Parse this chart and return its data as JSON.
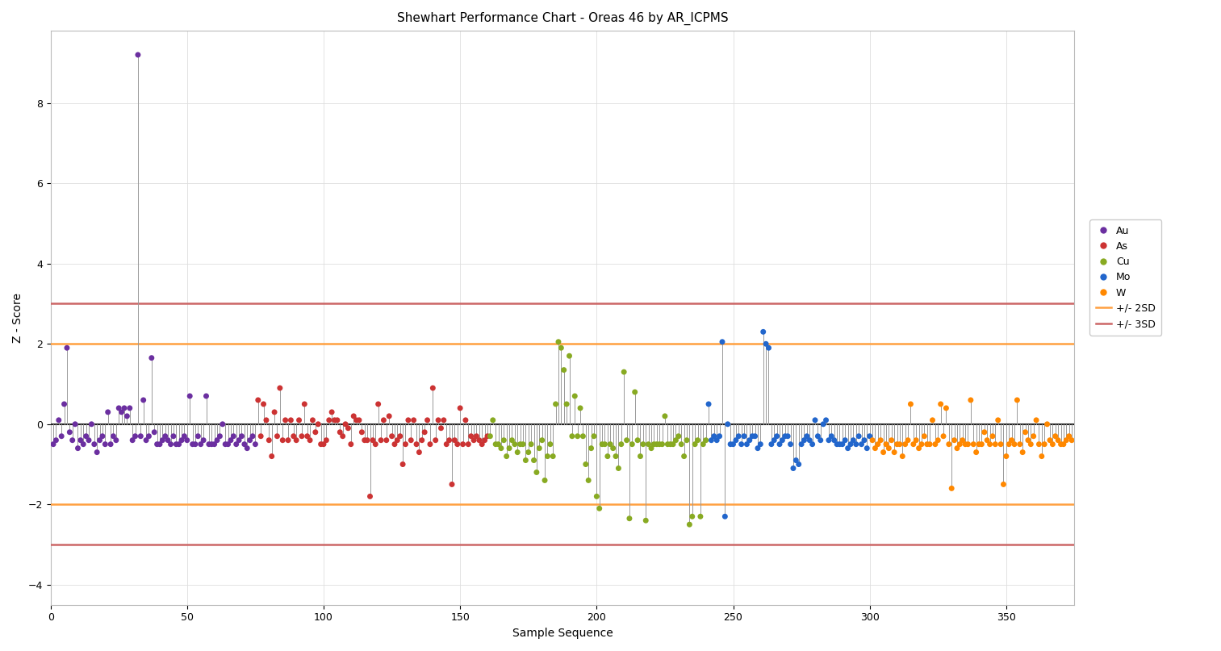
{
  "title": "Shewhart Performance Chart - Oreas 46 by AR_ICPMS",
  "xlabel": "Sample Sequence",
  "ylabel": "Z - Score",
  "ylim": [
    -4.5,
    9.8
  ],
  "xlim": [
    0,
    375
  ],
  "yticks": [
    -4,
    -2,
    0,
    2,
    4,
    6,
    8
  ],
  "xticks": [
    0,
    50,
    100,
    150,
    200,
    250,
    300,
    350
  ],
  "hline_2sd": 2.0,
  "hline_neg2sd": -2.0,
  "hline_3sd": 3.0,
  "hline_neg3sd": -3.0,
  "color_2sd": "#FFA040",
  "color_3sd": "#CC6666",
  "color_Au": "#6B2FA0",
  "color_As": "#CC3333",
  "color_Cu": "#88AA22",
  "color_Mo": "#2266CC",
  "color_W": "#FF8800",
  "color_zero": "#222222",
  "color_connector": "#999999",
  "background": "#FFFFFF",
  "Au_x": [
    1,
    2,
    3,
    4,
    5,
    6,
    7,
    8,
    9,
    10,
    11,
    12,
    13,
    14,
    15,
    16,
    17,
    18,
    19,
    20,
    21,
    22,
    23,
    24,
    25,
    26,
    27,
    28,
    29,
    30,
    31,
    32,
    33,
    34,
    35,
    36,
    37,
    38,
    39,
    40,
    41,
    42,
    43,
    44,
    45,
    46,
    47,
    48,
    49,
    50,
    51,
    52,
    53,
    54,
    55,
    56,
    57,
    58,
    59,
    60,
    61,
    62,
    63,
    64,
    65,
    66,
    67,
    68,
    69,
    70,
    71,
    72,
    73,
    74,
    75
  ],
  "Au_y": [
    -0.5,
    -0.4,
    0.1,
    -0.3,
    0.5,
    1.9,
    -0.2,
    -0.4,
    0.0,
    -0.6,
    -0.4,
    -0.5,
    -0.3,
    -0.4,
    0.0,
    -0.5,
    -0.7,
    -0.4,
    -0.3,
    -0.5,
    0.3,
    -0.5,
    -0.3,
    -0.4,
    0.4,
    0.3,
    0.4,
    0.2,
    0.4,
    -0.4,
    -0.3,
    9.2,
    -0.3,
    0.6,
    -0.4,
    -0.3,
    1.65,
    -0.2,
    -0.5,
    -0.5,
    -0.4,
    -0.3,
    -0.4,
    -0.5,
    -0.3,
    -0.5,
    -0.5,
    -0.4,
    -0.3,
    -0.4,
    0.7,
    -0.5,
    -0.5,
    -0.3,
    -0.5,
    -0.4,
    0.7,
    -0.5,
    -0.5,
    -0.5,
    -0.4,
    -0.3,
    0.0,
    -0.5,
    -0.5,
    -0.4,
    -0.3,
    -0.5,
    -0.4,
    -0.3,
    -0.5,
    -0.6,
    -0.4,
    -0.3,
    -0.5
  ],
  "As_x": [
    76,
    77,
    78,
    79,
    80,
    81,
    82,
    83,
    84,
    85,
    86,
    87,
    88,
    89,
    90,
    91,
    92,
    93,
    94,
    95,
    96,
    97,
    98,
    99,
    100,
    101,
    102,
    103,
    104,
    105,
    106,
    107,
    108,
    109,
    110,
    111,
    112,
    113,
    114,
    115,
    116,
    117,
    118,
    119,
    120,
    121,
    122,
    123,
    124,
    125,
    126,
    127,
    128,
    129,
    130,
    131,
    132,
    133,
    134,
    135,
    136,
    137,
    138,
    139,
    140,
    141,
    142,
    143,
    144,
    145,
    146,
    147,
    148,
    149,
    150,
    151,
    152,
    153,
    154,
    155,
    156,
    157,
    158,
    159,
    160
  ],
  "As_y": [
    0.6,
    -0.3,
    0.5,
    0.1,
    -0.4,
    -0.8,
    0.3,
    -0.3,
    0.9,
    -0.4,
    0.1,
    -0.4,
    0.1,
    -0.3,
    -0.4,
    0.1,
    -0.3,
    0.5,
    -0.3,
    -0.4,
    0.1,
    -0.2,
    0.0,
    -0.5,
    -0.5,
    -0.4,
    0.1,
    0.3,
    0.1,
    0.1,
    -0.2,
    -0.3,
    0.0,
    -0.1,
    -0.5,
    0.2,
    0.1,
    0.1,
    -0.2,
    -0.4,
    -0.4,
    -1.8,
    -0.4,
    -0.5,
    0.5,
    -0.4,
    0.1,
    -0.4,
    0.2,
    -0.3,
    -0.5,
    -0.4,
    -0.3,
    -1.0,
    -0.5,
    0.1,
    -0.4,
    0.1,
    -0.5,
    -0.7,
    -0.4,
    -0.2,
    0.1,
    -0.5,
    0.9,
    -0.4,
    0.1,
    -0.1,
    0.1,
    -0.5,
    -0.4,
    -1.5,
    -0.4,
    -0.5,
    0.4,
    -0.5,
    0.1,
    -0.5,
    -0.3,
    -0.4,
    -0.3,
    -0.4,
    -0.5,
    -0.4,
    -0.3
  ],
  "Cu_x": [
    161,
    162,
    163,
    164,
    165,
    166,
    167,
    168,
    169,
    170,
    171,
    172,
    173,
    174,
    175,
    176,
    177,
    178,
    179,
    180,
    181,
    182,
    183,
    184,
    185,
    186,
    187,
    188,
    189,
    190,
    191,
    192,
    193,
    194,
    195,
    196,
    197,
    198,
    199,
    200,
    201,
    202,
    203,
    204,
    205,
    206,
    207,
    208,
    209,
    210,
    211,
    212,
    213,
    214,
    215,
    216,
    217,
    218,
    219,
    220,
    221,
    222,
    223,
    224,
    225,
    226,
    227,
    228,
    229,
    230,
    231,
    232,
    233,
    234,
    235,
    236,
    237,
    238,
    239,
    240
  ],
  "Cu_y": [
    -0.3,
    0.1,
    -0.5,
    -0.5,
    -0.6,
    -0.4,
    -0.8,
    -0.6,
    -0.4,
    -0.5,
    -0.7,
    -0.5,
    -0.5,
    -0.9,
    -0.7,
    -0.5,
    -0.9,
    -1.2,
    -0.6,
    -0.4,
    -1.4,
    -0.8,
    -0.5,
    -0.8,
    0.5,
    2.05,
    1.9,
    1.35,
    0.5,
    1.7,
    -0.3,
    0.7,
    -0.3,
    0.4,
    -0.3,
    -1.0,
    -1.4,
    -0.6,
    -0.3,
    -1.8,
    -2.1,
    -0.5,
    -0.5,
    -0.8,
    -0.5,
    -0.6,
    -0.8,
    -1.1,
    -0.5,
    1.3,
    -0.4,
    -2.35,
    -0.5,
    0.8,
    -0.4,
    -0.8,
    -0.5,
    -2.4,
    -0.5,
    -0.6,
    -0.5,
    -0.5,
    -0.5,
    -0.5,
    0.2,
    -0.5,
    -0.5,
    -0.5,
    -0.4,
    -0.3,
    -0.5,
    -0.8,
    -0.4,
    -2.5,
    -2.3,
    -0.5,
    -0.4,
    -2.3,
    -0.5,
    -0.4
  ],
  "Mo_x": [
    241,
    242,
    243,
    244,
    245,
    246,
    247,
    248,
    249,
    250,
    251,
    252,
    253,
    254,
    255,
    256,
    257,
    258,
    259,
    260,
    261,
    262,
    263,
    264,
    265,
    266,
    267,
    268,
    269,
    270,
    271,
    272,
    273,
    274,
    275,
    276,
    277,
    278,
    279,
    280,
    281,
    282,
    283,
    284,
    285,
    286,
    287,
    288,
    289,
    290,
    291,
    292,
    293,
    294,
    295,
    296,
    297,
    298,
    299,
    300
  ],
  "Mo_y": [
    0.5,
    -0.4,
    -0.3,
    -0.4,
    -0.3,
    2.05,
    -2.3,
    0.0,
    -0.5,
    -0.5,
    -0.4,
    -0.3,
    -0.5,
    -0.3,
    -0.5,
    -0.4,
    -0.3,
    -0.3,
    -0.6,
    -0.5,
    2.3,
    2.0,
    1.9,
    -0.5,
    -0.4,
    -0.3,
    -0.5,
    -0.4,
    -0.3,
    -0.3,
    -0.5,
    -1.1,
    -0.9,
    -1.0,
    -0.5,
    -0.4,
    -0.3,
    -0.4,
    -0.5,
    0.1,
    -0.3,
    -0.4,
    0.0,
    0.1,
    -0.4,
    -0.3,
    -0.4,
    -0.5,
    -0.5,
    -0.5,
    -0.4,
    -0.6,
    -0.5,
    -0.4,
    -0.5,
    -0.3,
    -0.5,
    -0.4,
    -0.6,
    -0.3
  ],
  "W_x": [
    301,
    302,
    303,
    304,
    305,
    306,
    307,
    308,
    309,
    310,
    311,
    312,
    313,
    314,
    315,
    316,
    317,
    318,
    319,
    320,
    321,
    322,
    323,
    324,
    325,
    326,
    327,
    328,
    329,
    330,
    331,
    332,
    333,
    334,
    335,
    336,
    337,
    338,
    339,
    340,
    341,
    342,
    343,
    344,
    345,
    346,
    347,
    348,
    349,
    350,
    351,
    352,
    353,
    354,
    355,
    356,
    357,
    358,
    359,
    360,
    361,
    362,
    363,
    364,
    365,
    366,
    367,
    368,
    369,
    370,
    371,
    372,
    373,
    374
  ],
  "W_y": [
    -0.4,
    -0.6,
    -0.5,
    -0.4,
    -0.7,
    -0.5,
    -0.6,
    -0.4,
    -0.7,
    -0.5,
    -0.5,
    -0.8,
    -0.5,
    -0.4,
    0.5,
    -0.5,
    -0.4,
    -0.6,
    -0.5,
    -0.3,
    -0.5,
    -0.5,
    0.1,
    -0.5,
    -0.4,
    0.5,
    -0.3,
    0.4,
    -0.5,
    -1.6,
    -0.4,
    -0.6,
    -0.5,
    -0.4,
    -0.5,
    -0.5,
    0.6,
    -0.5,
    -0.7,
    -0.5,
    -0.5,
    -0.2,
    -0.4,
    -0.5,
    -0.3,
    -0.5,
    0.1,
    -0.5,
    -1.5,
    -0.8,
    -0.5,
    -0.4,
    -0.5,
    0.6,
    -0.5,
    -0.7,
    -0.2,
    -0.4,
    -0.5,
    -0.3,
    0.1,
    -0.5,
    -0.8,
    -0.5,
    0.0,
    -0.4,
    -0.5,
    -0.3,
    -0.4,
    -0.5,
    -0.5,
    -0.4,
    -0.3,
    -0.4
  ],
  "marker_size": 5,
  "title_fontsize": 11,
  "label_fontsize": 10,
  "tick_fontsize": 9,
  "legend_fontsize": 9
}
